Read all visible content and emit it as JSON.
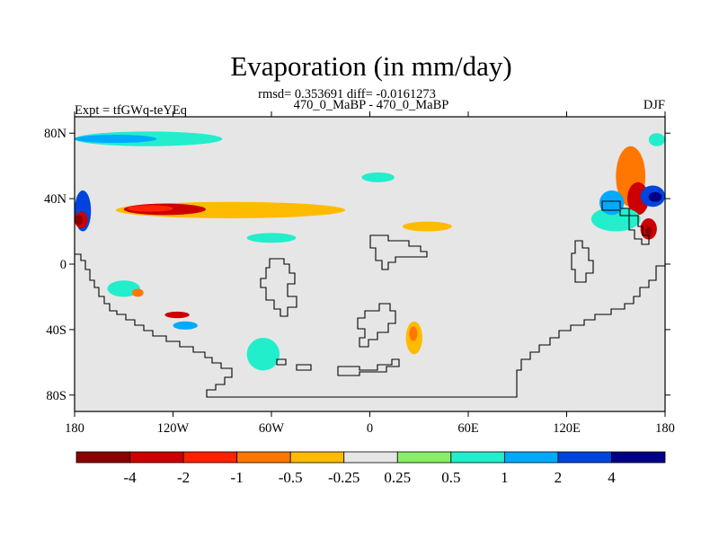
{
  "chart_data": {
    "type": "heatmap",
    "title": "Evaporation (in mm/day)",
    "stats": "rmsd= 0.353691 diff= -0.0161273",
    "subtitle": "470_0_MaBP - 470_0_MaBP",
    "left_label": "Expt = tfGWq-teYEq",
    "right_label": "DJF",
    "x_range": [
      -180,
      180
    ],
    "y_range": [
      -90,
      90
    ],
    "x_ticks": [
      {
        "value": -180,
        "label": "180"
      },
      {
        "value": -120,
        "label": "120W"
      },
      {
        "value": -60,
        "label": "60W"
      },
      {
        "value": 0,
        "label": "0"
      },
      {
        "value": 60,
        "label": "60E"
      },
      {
        "value": 120,
        "label": "120E"
      },
      {
        "value": 180,
        "label": "180"
      }
    ],
    "y_ticks": [
      {
        "value": 80,
        "label": "80N"
      },
      {
        "value": 40,
        "label": "40N"
      },
      {
        "value": 0,
        "label": "0"
      },
      {
        "value": -40,
        "label": "40S"
      },
      {
        "value": -80,
        "label": "80S"
      }
    ],
    "colorbar": {
      "colors": [
        "#8b0000",
        "#cc0000",
        "#ff2200",
        "#ff7700",
        "#ffbb00",
        "#e6e6e6",
        "#88ee66",
        "#22eecc",
        "#00aaff",
        "#0044dd",
        "#000088"
      ],
      "labels": [
        "-4",
        "-2",
        "-1",
        "-0.5",
        "-0.25",
        "0.25",
        "0.5",
        "1",
        "2",
        "4"
      ]
    },
    "background_color": "#e6e6e6",
    "anomalies": [
      {
        "region": "north-pacific-band",
        "lon": [
          -155,
          -15
        ],
        "lat": [
          28,
          38
        ],
        "level": "-0.25"
      },
      {
        "region": "north-pacific-core",
        "lon": [
          -150,
          -100
        ],
        "lat": [
          30,
          37
        ],
        "level": "-2"
      },
      {
        "region": "north-pacific-core-inner",
        "lon": [
          -148,
          -120
        ],
        "lat": [
          32,
          36
        ],
        "level": "-1"
      },
      {
        "region": "arctic-strip",
        "lon": [
          -180,
          -90
        ],
        "lat": [
          72,
          81
        ],
        "level": "0.5"
      },
      {
        "region": "arctic-strip-inner",
        "lon": [
          -180,
          -130
        ],
        "lat": [
          74,
          79
        ],
        "level": "1"
      },
      {
        "region": "west-pacific-edge",
        "lon": [
          -180,
          -170
        ],
        "lat": [
          20,
          45
        ],
        "level": "2"
      },
      {
        "region": "west-pacific-edge-red",
        "lon": [
          -180,
          -172
        ],
        "lat": [
          22,
          32
        ],
        "level": "-2"
      },
      {
        "region": "west-pacific-edge-dark",
        "lon": [
          -180,
          -175
        ],
        "lat": [
          24,
          30
        ],
        "level": "-4"
      },
      {
        "region": "kuroshio-orange",
        "lon": [
          150,
          168
        ],
        "lat": [
          35,
          72
        ],
        "level": "-0.5"
      },
      {
        "region": "kuroshio-red",
        "lon": [
          157,
          170
        ],
        "lat": [
          30,
          50
        ],
        "level": "-2"
      },
      {
        "region": "kuroshio-blue",
        "lon": [
          165,
          180
        ],
        "lat": [
          35,
          48
        ],
        "level": "2"
      },
      {
        "region": "kuroshio-darkblue",
        "lon": [
          170,
          178
        ],
        "lat": [
          38,
          44
        ],
        "level": "4"
      },
      {
        "region": "japan-south-red",
        "lon": [
          165,
          175
        ],
        "lat": [
          15,
          28
        ],
        "level": "-2"
      },
      {
        "region": "japan-south-dark",
        "lon": [
          168,
          172
        ],
        "lat": [
          17,
          23
        ],
        "level": "-4"
      },
      {
        "region": "arctic-east-green",
        "lon": [
          170,
          180
        ],
        "lat": [
          72,
          80
        ],
        "level": "0.5"
      },
      {
        "region": "east-china-green",
        "lon": [
          135,
          165
        ],
        "lat": [
          20,
          35
        ],
        "level": "0.5"
      },
      {
        "region": "east-asia-misc",
        "lon": [
          140,
          155
        ],
        "lat": [
          30,
          45
        ],
        "level": "1"
      },
      {
        "region": "tethys-yellow",
        "lon": [
          20,
          50
        ],
        "lat": [
          20,
          26
        ],
        "level": "-0.25"
      },
      {
        "region": "tethys-green",
        "lon": [
          -75,
          -45
        ],
        "lat": [
          13,
          19
        ],
        "level": "0.5"
      },
      {
        "region": "north-atlantic-green",
        "lon": [
          -5,
          15
        ],
        "lat": [
          50,
          56
        ],
        "level": "0.5"
      },
      {
        "region": "south-pacific-green",
        "lon": [
          -160,
          -140
        ],
        "lat": [
          -20,
          -10
        ],
        "level": "0.5"
      },
      {
        "region": "south-pacific-orange",
        "lon": [
          -145,
          -138
        ],
        "lat": [
          -20,
          -15
        ],
        "level": "-0.5"
      },
      {
        "region": "south-pacific-red",
        "lon": [
          -125,
          -110
        ],
        "lat": [
          -33,
          -29
        ],
        "level": "-2"
      },
      {
        "region": "south-pacific-cyan",
        "lon": [
          -120,
          -105
        ],
        "lat": [
          -40,
          -35
        ],
        "level": "1"
      },
      {
        "region": "south-atlantic-green",
        "lon": [
          -75,
          -55
        ],
        "lat": [
          -65,
          -45
        ],
        "level": "0.5"
      },
      {
        "region": "southern-africa-yellow",
        "lon": [
          22,
          32
        ],
        "lat": [
          -55,
          -35
        ],
        "level": "-0.25"
      },
      {
        "region": "southern-africa-orange",
        "lon": [
          24,
          29
        ],
        "lat": [
          -47,
          -38
        ],
        "level": "-0.5"
      }
    ]
  }
}
